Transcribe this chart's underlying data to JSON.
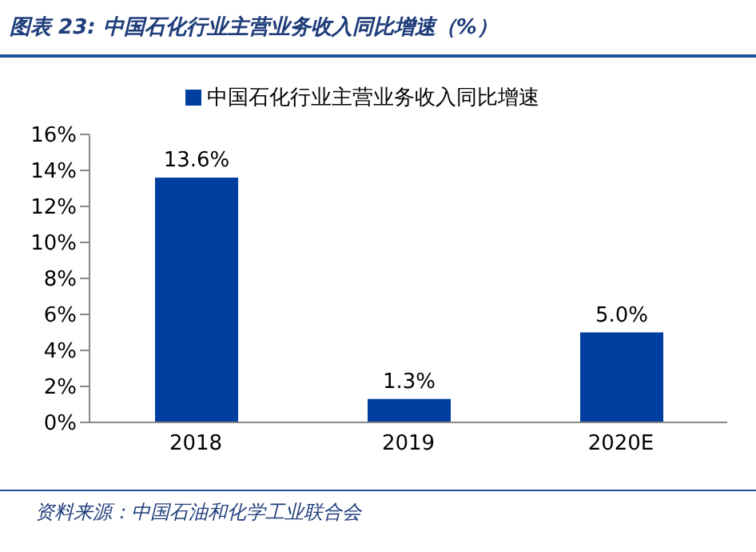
{
  "chart_data": {
    "type": "bar",
    "title": "图表 23:  中国石化行业主营业务收入同比增速（%）",
    "categories": [
      "2018",
      "2019",
      "2020E"
    ],
    "series": [
      {
        "name": "中国石化行业主营业务收入同比增速",
        "color": "#003f9f",
        "values": [
          13.6,
          1.3,
          5.0
        ],
        "value_labels": [
          "13.6%",
          "1.3%",
          "5.0%"
        ]
      }
    ],
    "ylim": [
      0,
      16
    ],
    "yticks": [
      {
        "value": 0,
        "label": "0%"
      },
      {
        "value": 2,
        "label": "2%"
      },
      {
        "value": 4,
        "label": "4%"
      },
      {
        "value": 6,
        "label": "6%"
      },
      {
        "value": 8,
        "label": "8%"
      },
      {
        "value": 10,
        "label": "10%"
      },
      {
        "value": 12,
        "label": "12%"
      },
      {
        "value": 14,
        "label": "14%"
      },
      {
        "value": 16,
        "label": "16%"
      }
    ],
    "legend": "top",
    "grid": false,
    "annotations": [
      "资料来源：中国石油和化学工业联合会"
    ]
  }
}
